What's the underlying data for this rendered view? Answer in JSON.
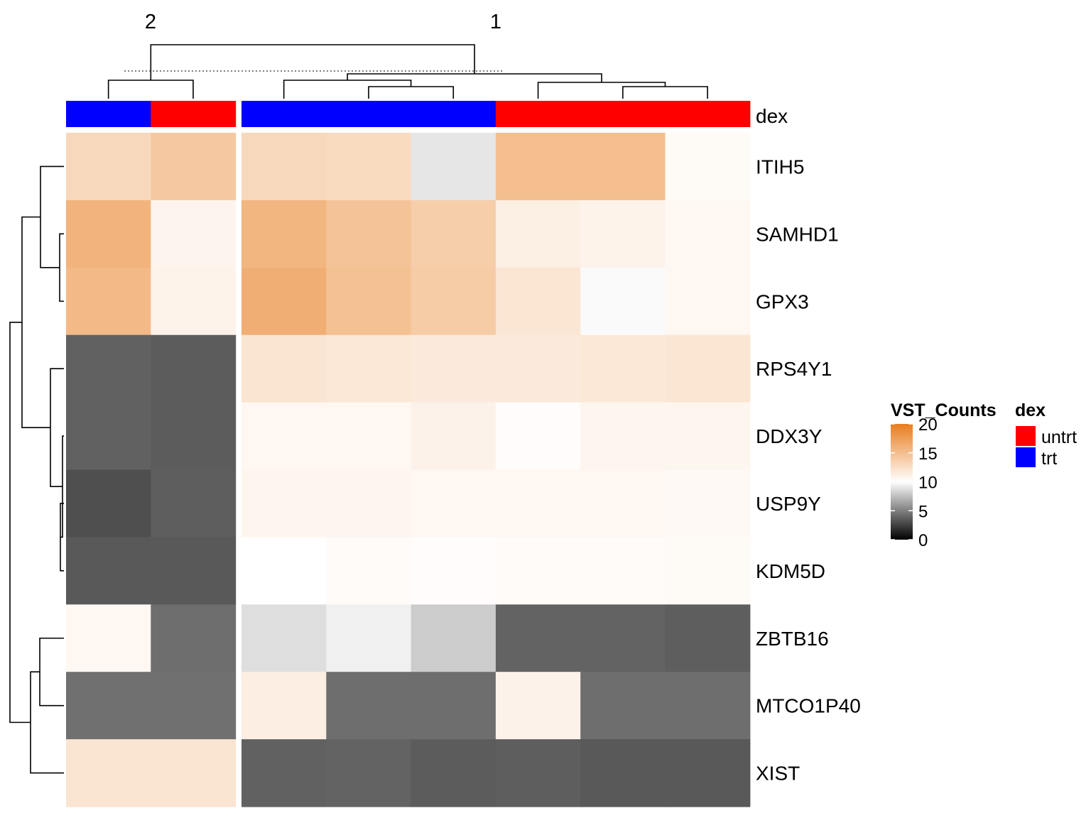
{
  "chart_data": {
    "type": "heatmap",
    "legend_title": "VST_Counts",
    "legend_ticks": [
      20,
      15,
      10,
      5,
      0
    ],
    "color_scale": [
      {
        "value": 0,
        "color": "#000000"
      },
      {
        "value": 10,
        "color": "#ffffff"
      },
      {
        "value": 20,
        "color": "#e87d1e"
      }
    ],
    "annotation": {
      "name": "dex",
      "levels": [
        {
          "label": "untrt",
          "color": "#ff0000"
        },
        {
          "label": "trt",
          "color": "#0000ff"
        }
      ]
    },
    "column_split_labels": [
      "2",
      "1"
    ],
    "column_groups": [
      {
        "label": "2",
        "dex": [
          "trt",
          "untrt"
        ]
      },
      {
        "label": "1",
        "dex": [
          "trt",
          "trt",
          "trt",
          "untrt",
          "untrt",
          "untrt"
        ]
      }
    ],
    "rows": [
      "ITIH5",
      "SAMHD1",
      "GPX3",
      "RPS4Y1",
      "DDX3Y",
      "USP9Y",
      "KDM5D",
      "ZBTB16",
      "MTCO1P40",
      "XIST"
    ],
    "values": [
      [
        13.0,
        14.2,
        13.0,
        12.8,
        9.0,
        15.0,
        15.0,
        10.4
      ],
      [
        15.8,
        10.8,
        15.6,
        14.6,
        13.8,
        11.2,
        10.9,
        10.6
      ],
      [
        15.3,
        10.9,
        16.2,
        14.8,
        13.9,
        11.9,
        9.8,
        10.6
      ],
      [
        3.8,
        3.6,
        12.0,
        11.8,
        11.6,
        11.6,
        11.8,
        11.9
      ],
      [
        3.8,
        3.6,
        10.6,
        10.6,
        11.0,
        10.2,
        10.7,
        10.7
      ],
      [
        3.1,
        3.7,
        10.7,
        10.7,
        10.6,
        10.6,
        10.6,
        10.5
      ],
      [
        3.5,
        3.5,
        10.0,
        10.3,
        10.2,
        10.3,
        10.3,
        10.4
      ],
      [
        10.6,
        4.3,
        8.7,
        9.4,
        8.0,
        3.9,
        3.9,
        3.7
      ],
      [
        4.4,
        4.4,
        11.3,
        4.3,
        4.3,
        11.0,
        4.3,
        4.3
      ],
      [
        12.0,
        12.0,
        3.8,
        3.9,
        3.6,
        3.7,
        3.5,
        3.5
      ]
    ]
  }
}
